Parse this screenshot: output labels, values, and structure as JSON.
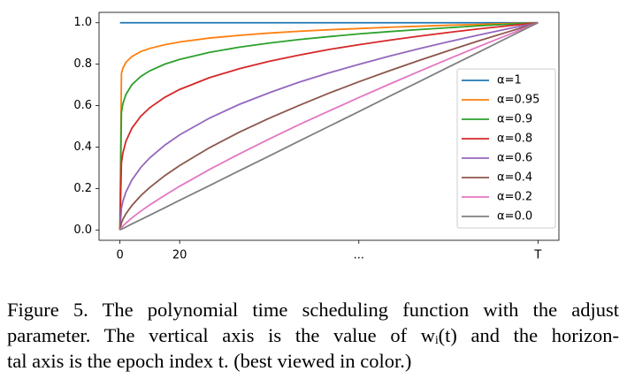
{
  "chart_data": {
    "type": "line",
    "x": [
      0,
      0.5,
      1,
      2,
      4,
      7,
      10,
      15,
      20,
      30,
      40,
      50,
      60,
      70,
      80,
      90,
      100,
      110,
      120,
      130,
      140
    ],
    "xlim": [
      -7,
      147
    ],
    "xticks": [
      0,
      20,
      {
        "value": 80,
        "label": "..."
      },
      {
        "value": 140,
        "label": "T"
      }
    ],
    "ylim": [
      -0.05,
      1.05
    ],
    "yticks": [
      {
        "value": 0,
        "label": "0.0"
      },
      0.2,
      0.4,
      0.6,
      0.8,
      {
        "value": 1,
        "label": "1.0"
      }
    ],
    "legend": "right",
    "series": [
      {
        "name": "α=1",
        "color": "#1f77b4",
        "values": [
          1,
          1,
          1,
          1,
          1,
          1,
          1,
          1,
          1,
          1,
          1,
          1,
          1,
          1,
          1,
          1,
          1,
          1,
          1,
          1,
          1
        ]
      },
      {
        "name": "α=0.95",
        "color": "#ff7f0e",
        "values": [
          0,
          0.754,
          0.781,
          0.809,
          0.837,
          0.861,
          0.876,
          0.894,
          0.907,
          0.926,
          0.939,
          0.95,
          0.959,
          0.966,
          0.972,
          0.978,
          0.983,
          0.988,
          0.992,
          0.996,
          1
        ]
      },
      {
        "name": "α=0.9",
        "color": "#2ca02c",
        "values": [
          0,
          0.569,
          0.61,
          0.654,
          0.701,
          0.741,
          0.768,
          0.8,
          0.823,
          0.857,
          0.882,
          0.902,
          0.919,
          0.933,
          0.946,
          0.957,
          0.967,
          0.976,
          0.985,
          0.993,
          1
        ]
      },
      {
        "name": "α=0.8",
        "color": "#d62728",
        "values": [
          0,
          0.324,
          0.372,
          0.428,
          0.491,
          0.549,
          0.59,
          0.64,
          0.678,
          0.735,
          0.778,
          0.814,
          0.844,
          0.871,
          0.894,
          0.915,
          0.935,
          0.953,
          0.97,
          0.985,
          1
        ]
      },
      {
        "name": "α=0.6",
        "color": "#9467bd",
        "values": [
          0,
          0.105,
          0.139,
          0.183,
          0.241,
          0.302,
          0.348,
          0.409,
          0.459,
          0.54,
          0.606,
          0.662,
          0.713,
          0.758,
          0.799,
          0.838,
          0.874,
          0.908,
          0.94,
          0.971,
          1
        ]
      },
      {
        "name": "α=0.4",
        "color": "#8c564b",
        "values": [
          0,
          0.034,
          0.052,
          0.078,
          0.118,
          0.166,
          0.205,
          0.262,
          0.311,
          0.397,
          0.472,
          0.539,
          0.601,
          0.66,
          0.715,
          0.767,
          0.817,
          0.865,
          0.912,
          0.956,
          1
        ]
      },
      {
        "name": "α=0.2",
        "color": "#e377c2",
        "values": [
          0,
          0.011,
          0.019,
          0.033,
          0.058,
          0.091,
          0.121,
          0.167,
          0.211,
          0.292,
          0.367,
          0.439,
          0.508,
          0.574,
          0.639,
          0.702,
          0.764,
          0.825,
          0.884,
          0.942,
          1
        ]
      },
      {
        "name": "α=0.0",
        "color": "#7f7f7f",
        "values": [
          0,
          0.004,
          0.007,
          0.014,
          0.029,
          0.05,
          0.071,
          0.107,
          0.143,
          0.214,
          0.286,
          0.357,
          0.429,
          0.5,
          0.571,
          0.643,
          0.714,
          0.786,
          0.857,
          0.929,
          1
        ]
      }
    ],
    "caption": [
      "Figure 5. The polynomial time scheduling function with the adjust",
      "parameter. The vertical axis is the value of wᵢ(t) and the horizon-",
      "tal axis is the epoch index t. (best viewed in color.)"
    ]
  }
}
